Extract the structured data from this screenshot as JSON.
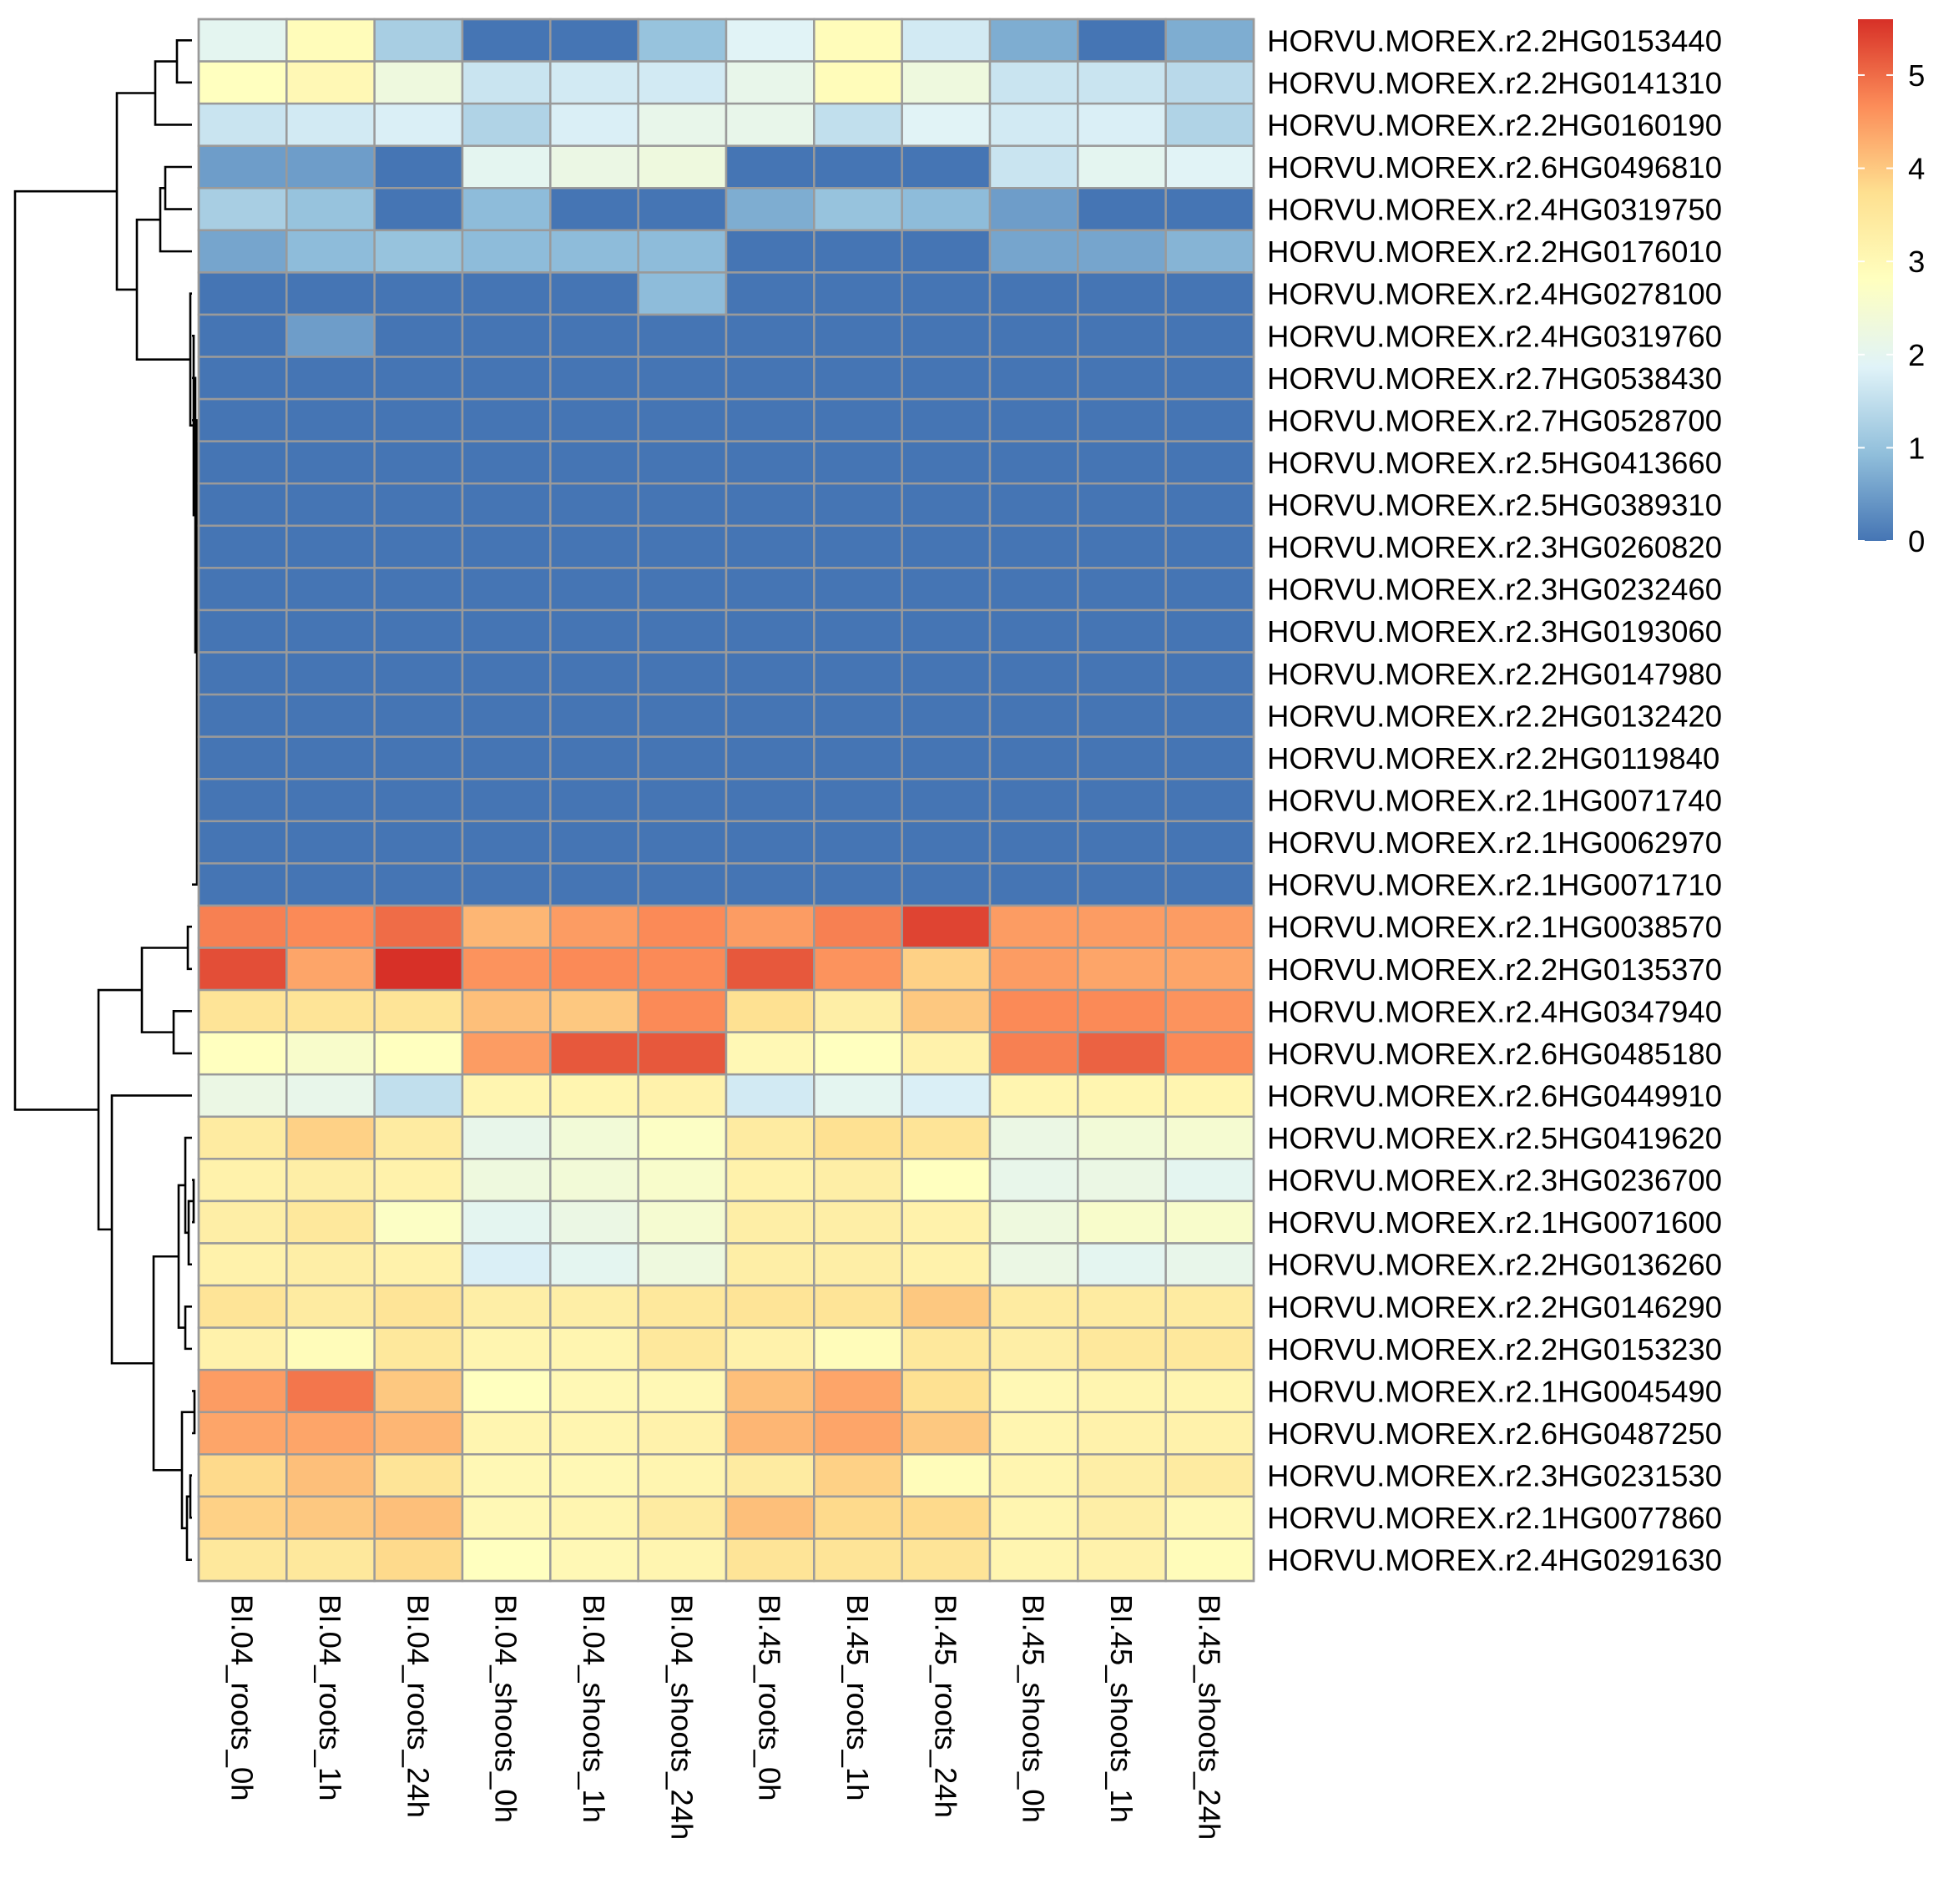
{
  "chart_data": {
    "type": "heatmap",
    "title": "",
    "xlabel": "",
    "ylabel": "",
    "columns": [
      "BI.04_roots_0h",
      "BI.04_roots_1h",
      "BI.04_roots_24h",
      "BI.04_shoots_0h",
      "BI.04_shoots_1h",
      "BI.04_shoots_24h",
      "BI.45_roots_0h",
      "BI.45_roots_1h",
      "BI.45_roots_24h",
      "BI.45_shoots_0h",
      "BI.45_shoots_1h",
      "BI.45_shoots_24h"
    ],
    "rows": [
      "HORVU.MOREX.r2.2HG0153440",
      "HORVU.MOREX.r2.2HG0141310",
      "HORVU.MOREX.r2.2HG0160190",
      "HORVU.MOREX.r2.6HG0496810",
      "HORVU.MOREX.r2.4HG0319750",
      "HORVU.MOREX.r2.2HG0176010",
      "HORVU.MOREX.r2.4HG0278100",
      "HORVU.MOREX.r2.4HG0319760",
      "HORVU.MOREX.r2.7HG0538430",
      "HORVU.MOREX.r2.7HG0528700",
      "HORVU.MOREX.r2.5HG0413660",
      "HORVU.MOREX.r2.5HG0389310",
      "HORVU.MOREX.r2.3HG0260820",
      "HORVU.MOREX.r2.3HG0232460",
      "HORVU.MOREX.r2.3HG0193060",
      "HORVU.MOREX.r2.2HG0147980",
      "HORVU.MOREX.r2.2HG0132420",
      "HORVU.MOREX.r2.2HG0119840",
      "HORVU.MOREX.r2.1HG0071740",
      "HORVU.MOREX.r2.1HG0062970",
      "HORVU.MOREX.r2.1HG0071710",
      "HORVU.MOREX.r2.1HG0038570",
      "HORVU.MOREX.r2.2HG0135370",
      "HORVU.MOREX.r2.4HG0347940",
      "HORVU.MOREX.r2.6HG0485180",
      "HORVU.MOREX.r2.6HG0449910",
      "HORVU.MOREX.r2.5HG0419620",
      "HORVU.MOREX.r2.3HG0236700",
      "HORVU.MOREX.r2.1HG0071600",
      "HORVU.MOREX.r2.2HG0136260",
      "HORVU.MOREX.r2.2HG0146290",
      "HORVU.MOREX.r2.2HG0153230",
      "HORVU.MOREX.r2.1HG0045490",
      "HORVU.MOREX.r2.6HG0487250",
      "HORVU.MOREX.r2.3HG0231530",
      "HORVU.MOREX.r2.1HG0077860",
      "HORVU.MOREX.r2.4HG0291630"
    ],
    "values": [
      [
        2.0,
        2.9,
        1.2,
        0.0,
        0.0,
        1.0,
        1.9,
        2.9,
        1.7,
        0.7,
        0.0,
        0.7
      ],
      [
        2.8,
        3.0,
        2.3,
        1.6,
        1.7,
        1.7,
        2.1,
        2.9,
        2.3,
        1.6,
        1.6,
        1.4
      ],
      [
        1.6,
        1.7,
        1.8,
        1.3,
        1.8,
        2.1,
        2.1,
        1.5,
        1.9,
        1.7,
        1.8,
        1.3
      ],
      [
        0.5,
        0.5,
        0.0,
        2.0,
        2.2,
        2.3,
        0.0,
        0.0,
        0.0,
        1.6,
        2.0,
        1.9
      ],
      [
        1.2,
        1.0,
        0.0,
        0.9,
        0.0,
        0.0,
        0.7,
        1.0,
        0.9,
        0.5,
        0.0,
        0.0
      ],
      [
        0.6,
        0.9,
        1.0,
        0.9,
        0.9,
        0.9,
        0.0,
        0.0,
        0.0,
        0.6,
        0.6,
        0.8
      ],
      [
        0.0,
        0.0,
        0.0,
        0.0,
        0.0,
        0.9,
        0.0,
        0.0,
        0.0,
        0.0,
        0.0,
        0.0
      ],
      [
        0.0,
        0.5,
        0.0,
        0.0,
        0.0,
        0.0,
        0.0,
        0.0,
        0.0,
        0.0,
        0.0,
        0.0
      ],
      [
        0.0,
        0.0,
        0.0,
        0.0,
        0.0,
        0.0,
        0.0,
        0.0,
        0.0,
        0.0,
        0.0,
        0.0
      ],
      [
        0.0,
        0.0,
        0.0,
        0.0,
        0.0,
        0.0,
        0.0,
        0.0,
        0.0,
        0.0,
        0.0,
        0.0
      ],
      [
        0.0,
        0.0,
        0.0,
        0.0,
        0.0,
        0.0,
        0.0,
        0.0,
        0.0,
        0.0,
        0.0,
        0.0
      ],
      [
        0.0,
        0.0,
        0.0,
        0.0,
        0.0,
        0.0,
        0.0,
        0.0,
        0.0,
        0.0,
        0.0,
        0.0
      ],
      [
        0.0,
        0.0,
        0.0,
        0.0,
        0.0,
        0.0,
        0.0,
        0.0,
        0.0,
        0.0,
        0.0,
        0.0
      ],
      [
        0.0,
        0.0,
        0.0,
        0.0,
        0.0,
        0.0,
        0.0,
        0.0,
        0.0,
        0.0,
        0.0,
        0.0
      ],
      [
        0.0,
        0.0,
        0.0,
        0.0,
        0.0,
        0.0,
        0.0,
        0.0,
        0.0,
        0.0,
        0.0,
        0.0
      ],
      [
        0.0,
        0.0,
        0.0,
        0.0,
        0.0,
        0.0,
        0.0,
        0.0,
        0.0,
        0.0,
        0.0,
        0.0
      ],
      [
        0.0,
        0.0,
        0.0,
        0.0,
        0.0,
        0.0,
        0.0,
        0.0,
        0.0,
        0.0,
        0.0,
        0.0
      ],
      [
        0.0,
        0.0,
        0.0,
        0.0,
        0.0,
        0.0,
        0.0,
        0.0,
        0.0,
        0.0,
        0.0,
        0.0
      ],
      [
        0.0,
        0.0,
        0.0,
        0.0,
        0.0,
        0.0,
        0.0,
        0.0,
        0.0,
        0.0,
        0.0,
        0.0
      ],
      [
        0.0,
        0.0,
        0.0,
        0.0,
        0.0,
        0.0,
        0.0,
        0.0,
        0.0,
        0.0,
        0.0,
        0.0
      ],
      [
        0.0,
        0.0,
        0.0,
        0.0,
        0.0,
        0.0,
        0.0,
        0.0,
        0.0,
        0.0,
        0.0,
        0.0
      ],
      [
        4.8,
        4.7,
        5.0,
        4.2,
        4.5,
        4.7,
        4.5,
        4.8,
        5.4,
        4.5,
        4.5,
        4.5
      ],
      [
        5.3,
        4.4,
        5.6,
        4.6,
        4.7,
        4.7,
        5.2,
        4.6,
        3.9,
        4.5,
        4.4,
        4.4
      ],
      [
        3.6,
        3.6,
        3.6,
        4.1,
        4.0,
        4.7,
        3.7,
        3.3,
        4.0,
        4.7,
        4.7,
        4.6
      ],
      [
        2.8,
        2.6,
        2.8,
        4.5,
        5.2,
        5.2,
        3.0,
        2.8,
        3.2,
        4.8,
        5.1,
        4.7
      ],
      [
        2.2,
        2.1,
        1.5,
        3.1,
        3.1,
        3.2,
        1.7,
        2.0,
        1.8,
        3.1,
        3.1,
        3.1
      ],
      [
        3.4,
        3.9,
        3.4,
        2.1,
        2.4,
        2.7,
        3.4,
        3.7,
        3.6,
        2.2,
        2.4,
        2.5
      ],
      [
        3.2,
        3.3,
        3.2,
        2.3,
        2.4,
        2.6,
        3.2,
        3.3,
        2.8,
        2.1,
        2.2,
        2.0
      ],
      [
        3.3,
        3.5,
        2.7,
        2.0,
        2.2,
        2.5,
        3.3,
        3.3,
        3.2,
        2.3,
        2.6,
        2.6
      ],
      [
        3.2,
        3.3,
        3.2,
        1.8,
        2.0,
        2.3,
        3.3,
        3.3,
        3.2,
        2.2,
        2.0,
        2.1
      ],
      [
        3.6,
        3.4,
        3.6,
        3.3,
        3.3,
        3.5,
        3.6,
        3.6,
        4.0,
        3.4,
        3.4,
        3.4
      ],
      [
        3.2,
        2.9,
        3.5,
        3.1,
        3.1,
        3.5,
        3.2,
        2.9,
        3.5,
        3.3,
        3.5,
        3.5
      ],
      [
        4.5,
        4.9,
        4.0,
        2.8,
        3.0,
        3.0,
        4.1,
        4.4,
        3.7,
        3.0,
        3.1,
        3.1
      ],
      [
        4.4,
        4.4,
        4.2,
        3.1,
        3.1,
        3.2,
        4.2,
        4.4,
        4.0,
        3.1,
        3.2,
        3.2
      ],
      [
        3.8,
        4.1,
        3.6,
        3.0,
        3.0,
        3.1,
        3.4,
        3.9,
        2.9,
        3.1,
        3.3,
        3.4
      ],
      [
        3.9,
        4.0,
        4.1,
        3.0,
        3.1,
        3.4,
        4.1,
        3.8,
        3.8,
        3.1,
        3.3,
        3.0
      ],
      [
        3.5,
        3.5,
        3.8,
        2.8,
        3.0,
        3.1,
        3.6,
        3.6,
        3.6,
        3.1,
        3.2,
        2.9
      ]
    ],
    "color_scale": {
      "min": 0,
      "max": 5.6,
      "palette": [
        "#4575b4",
        "#91bfdb",
        "#e0f3f8",
        "#ffffbf",
        "#fee090",
        "#fc8d59",
        "#d73027"
      ]
    },
    "legend": {
      "position": "top-right",
      "ticks": [
        "0",
        "1",
        "2",
        "3",
        "4",
        "5"
      ]
    },
    "row_dendrogram": true,
    "column_dendrogram": false,
    "grid": false
  }
}
